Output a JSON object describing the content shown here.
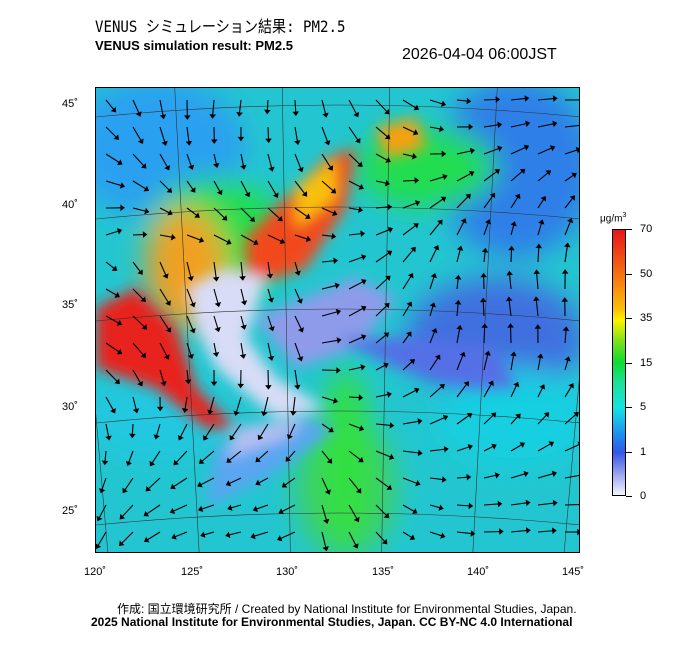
{
  "header": {
    "title_jp": "VENUS シミュレーション結果: PM2.5",
    "title_en": "VENUS simulation result: PM2.5",
    "datetime": "2026-04-04 06:00JST"
  },
  "map": {
    "lat_labels": [
      "45˚",
      "40˚",
      "35˚",
      "30˚",
      "25˚"
    ],
    "lon_labels": [
      "120˚",
      "125˚",
      "130˚",
      "135˚",
      "140˚",
      "145˚"
    ]
  },
  "colorbar": {
    "unit": "μg/m3",
    "unit_base": "μg/m",
    "unit_sup": "3",
    "ticks": [
      "70",
      "50",
      "35",
      "15",
      "5",
      "1",
      "0"
    ],
    "colors": [
      "#e8141a",
      "#f46d12",
      "#fff200",
      "#0bdc34",
      "#15e3e3",
      "#3557e8",
      "#f4f5fc"
    ]
  },
  "footer": {
    "credit": "作成: 国立環境研究所 / Created by National Institute for Environmental Studies, Japan.",
    "copyright": "2025 National Institute for Environmental Studies, Japan. CC BY-NC 4.0 International"
  }
}
